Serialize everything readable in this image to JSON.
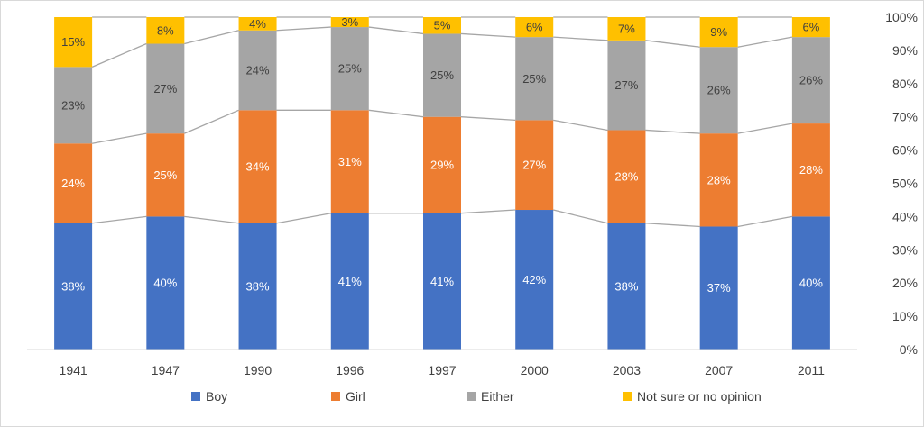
{
  "chart_data": {
    "type": "bar",
    "stacked": true,
    "categories": [
      "1941",
      "1947",
      "1990",
      "1996",
      "1997",
      "2000",
      "2003",
      "2007",
      "2011"
    ],
    "series": [
      {
        "name": "Boy",
        "color": "#4472c4",
        "label_color": "#ffffff",
        "values": [
          38,
          40,
          38,
          41,
          41,
          42,
          38,
          37,
          40
        ]
      },
      {
        "name": "Girl",
        "color": "#ed7d31",
        "label_color": "#ffffff",
        "values": [
          24,
          25,
          34,
          31,
          29,
          27,
          28,
          28,
          28
        ]
      },
      {
        "name": "Either",
        "color": "#a5a5a5",
        "label_color": "#404040",
        "values": [
          23,
          27,
          24,
          25,
          25,
          25,
          27,
          26,
          26
        ]
      },
      {
        "name": "Not sure or no opinion",
        "color": "#ffc000",
        "label_color": "#404040",
        "values": [
          15,
          8,
          4,
          3,
          5,
          6,
          7,
          9,
          6
        ]
      }
    ],
    "y_axis": {
      "position": "right",
      "ylim": [
        0,
        100
      ],
      "ticks": [
        "0%",
        "10%",
        "20%",
        "30%",
        "40%",
        "50%",
        "60%",
        "70%",
        "80%",
        "90%",
        "100%"
      ]
    },
    "series_lines": true,
    "grid": false,
    "legend": "bottom",
    "value_suffix": "%"
  }
}
